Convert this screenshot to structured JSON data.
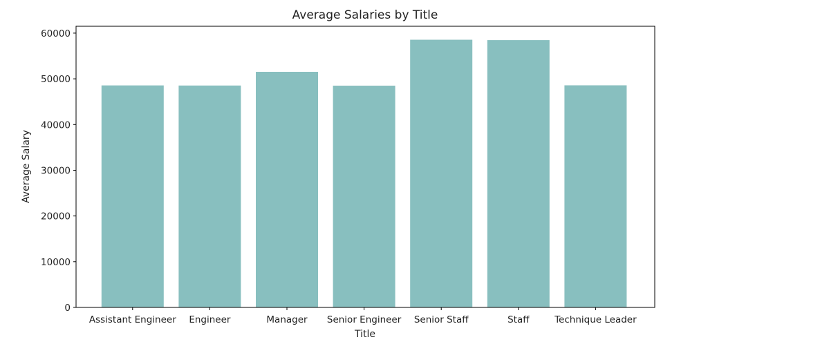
{
  "chart_data": {
    "type": "bar",
    "title": "Average Salaries by Title",
    "xlabel": "Title",
    "ylabel": "Average Salary",
    "categories": [
      "Assistant Engineer",
      "Engineer",
      "Manager",
      "Senior Engineer",
      "Senior Staff",
      "Staff",
      "Technique Leader"
    ],
    "values": [
      48560,
      48535,
      51531,
      48507,
      58550,
      58465,
      48583
    ],
    "ylim": [
      0,
      61500
    ],
    "yticks": [
      0,
      10000,
      20000,
      30000,
      40000,
      50000,
      60000
    ],
    "bar_color": "#88bfbf",
    "grid": false
  }
}
